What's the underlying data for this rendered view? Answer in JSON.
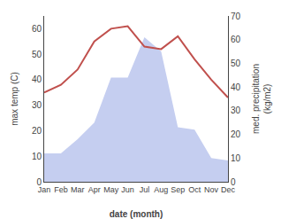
{
  "chart_data": {
    "type": "line",
    "xlabel": "date (month)",
    "ylabel": "max temp (C)",
    "y2label": "med. precipitation\n(kg/m2)",
    "categories": [
      "Jan",
      "Feb",
      "Mar",
      "Apr",
      "May",
      "Jun",
      "Jul",
      "Aug",
      "Sep",
      "Oct",
      "Nov",
      "Dec"
    ],
    "series": [
      {
        "type": "line",
        "color": "#c0504d",
        "values": [
          35,
          38,
          44,
          55,
          60,
          61,
          53,
          52,
          57,
          48,
          40,
          33
        ]
      },
      {
        "type": "area",
        "color": "#c5cef0",
        "axis": "y2",
        "values": [
          12,
          12,
          18,
          25,
          44,
          44,
          61,
          55,
          23,
          22,
          10,
          9
        ]
      }
    ],
    "ylim": [
      0,
      65
    ],
    "yticks": [
      0,
      10,
      20,
      30,
      40,
      50,
      60
    ],
    "y2lim": [
      0,
      70
    ],
    "y2ticks": [
      0,
      10,
      20,
      30,
      40,
      50,
      60,
      70
    ],
    "grid": false
  }
}
